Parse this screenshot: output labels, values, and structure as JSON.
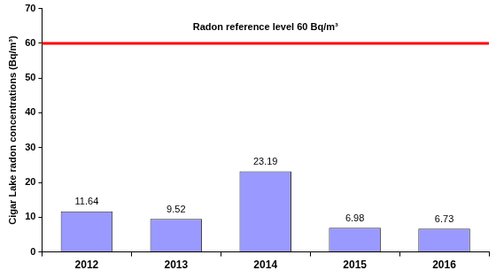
{
  "chart_data": {
    "type": "bar",
    "y_label": "Cigar Lake radon concentrations (Bq/m³)",
    "categories": [
      "2012",
      "2013",
      "2014",
      "2015",
      "2016"
    ],
    "values": [
      11.64,
      9.52,
      23.19,
      6.98,
      6.73
    ],
    "color": "#9999ff",
    "ylim": [
      0,
      70
    ],
    "yticks": [
      0,
      10,
      20,
      30,
      40,
      50,
      60,
      70
    ],
    "grid": false,
    "data_labels": true,
    "reference_lines": [
      {
        "value": 60,
        "label": "Radon reference level 60 Bq/m³",
        "color": "#ff0000"
      }
    ]
  }
}
